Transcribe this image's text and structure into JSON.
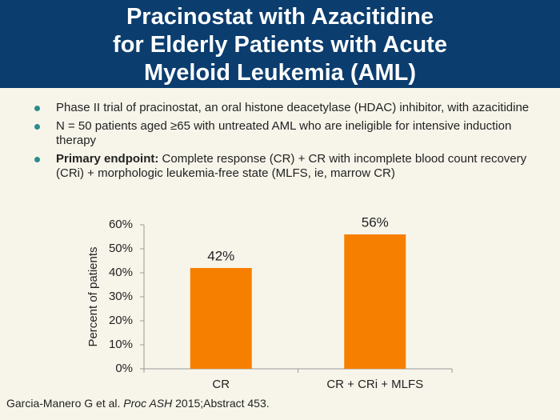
{
  "header": {
    "title_lines": [
      "Pracinostat with Azacitidine",
      "for Elderly Patients with Acute",
      "Myeloid Leukemia (AML)"
    ]
  },
  "bullets": [
    {
      "text": "Phase II trial of pracinostat, an oral histone deacetylase (HDAC) inhibitor, with azacitidine"
    },
    {
      "text": "N = 50 patients aged ≥65 with untreated AML who are ineligible for intensive induction therapy"
    },
    {
      "bold": "Primary endpoint:",
      "text": " Complete response (CR) + CR with incomplete blood count recovery (CRi) + morphologic leukemia-free state (MLFS, ie, marrow CR)"
    }
  ],
  "chart_data": {
    "type": "bar",
    "y_label": "Percent of patients",
    "categories": [
      "CR",
      "CR + CRi + MLFS"
    ],
    "values": [
      42,
      56
    ],
    "value_labels": [
      "42%",
      "56%"
    ],
    "color": "#f77f00",
    "ylim": [
      0,
      60
    ],
    "yticks": [
      {
        "value": 0,
        "label": "0%"
      },
      {
        "value": 10,
        "label": "10%"
      },
      {
        "value": 20,
        "label": "20%"
      },
      {
        "value": 30,
        "label": "30%"
      },
      {
        "value": 40,
        "label": "40%"
      },
      {
        "value": 50,
        "label": "50%"
      },
      {
        "value": 60,
        "label": "60%"
      }
    ]
  },
  "citation": {
    "authors": "Garcia-Manero G et al. ",
    "journal": "Proc ASH",
    "rest": " 2015;Abstract 453."
  }
}
